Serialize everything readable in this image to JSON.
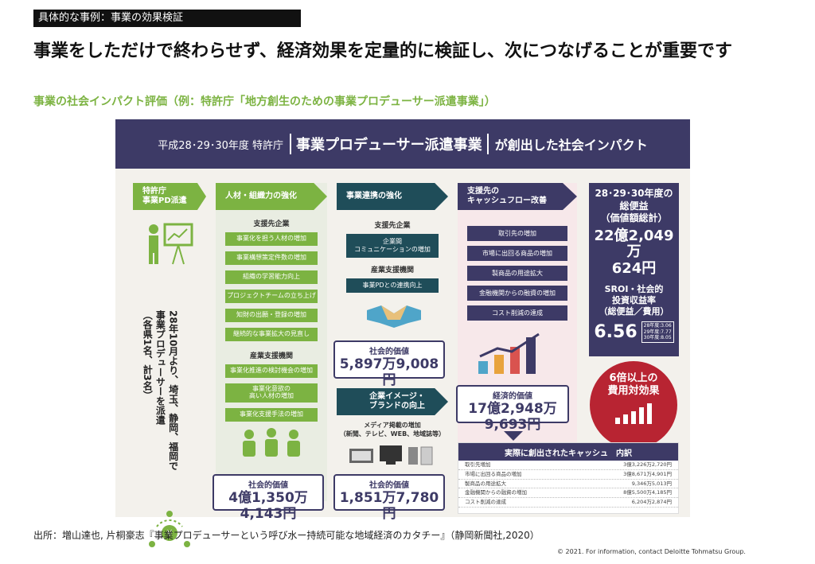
{
  "header": {
    "tag": "具体的な事例：事業の効果検証",
    "headline": "事業をしただけで終わらせず、経済効果を定量的に検証し、次につなげることが重要です",
    "subhead": "事業の社会インパクト評価（例：特許庁「地方創生のための事業プロデューサー派遣事業」）"
  },
  "infographic": {
    "banner_pre": "平成28･29･30年度 特許庁",
    "banner_mid": "事業プロデューサー派遣事業",
    "banner_post": "が創出した社会インパクト",
    "col_pd": {
      "head": "特許庁\n事業PD派遣",
      "text": "28年10月より、埼玉、静岡、福岡で\n事業プロデューサーを派遣\n（各県1名、計3名）",
      "icon": "presenter-icon"
    },
    "col_jinzai": {
      "head": "人材・組織力の強化",
      "group1": "支援先企業",
      "items1": [
        "事業化を担う人材の増加",
        "事業構想策定件数の増加",
        "組織の学習能力向上",
        "プロジェクトチームの立ち上げ",
        "知財の出願・登録の増加",
        "継続的な事業拡大の見直し"
      ],
      "group2": "産業支援機関",
      "items2": [
        "事業化推進の検討機会の増加",
        "事業化意欲の\n高い人材の増加",
        "事業化支援手法の増加"
      ],
      "value_label": "社会的価値",
      "value": "4億1,350万4,143円"
    },
    "col_renkei": {
      "head": "事業連携の強化",
      "group1": "支援先企業",
      "item1": "企業間\nコミュニケーションの増加",
      "group2": "産業支援機関",
      "item2": "事業PDとの連携向上",
      "icon": "handshake-icon",
      "value1_label": "社会的価値",
      "value1": "5,897万9,008円",
      "head2": "企業イメージ・\nブランドの向上",
      "media": "メディア掲載の増加\n（新聞、テレビ、WEB、地域誌等）",
      "value2_label": "社会的価値",
      "value2": "1,851万7,780円"
    },
    "col_cash": {
      "head": "支援先の\nキャッシュフロー改善",
      "items": [
        "取引先の増加",
        "市場に出回る商品の増加",
        "製商品の用途拡大",
        "金融機関からの融資の増加",
        "コスト削減の達成"
      ],
      "value_label": "経済的価値",
      "value": "17億2,948万9,693円"
    },
    "total": {
      "label": "28･29･30年度の\n総便益\n（価値額総計）",
      "value": "22億2,049万\n624円",
      "sroi_label": "SROI・社会的\n投資収益率\n（総便益／費用）",
      "sroi": "6.56",
      "sroi_years": "28年度:3.06\n29年度:7.77\n30年度:8.05"
    },
    "circle": "6倍以上の\n費用対効果",
    "breakdown": {
      "title": "実際に創出されたキャッシュ　内訳",
      "rows": [
        {
          "k": "取引先増加",
          "v": "3億3,226万2,720円"
        },
        {
          "k": "市場に出回る商品の増加",
          "v": "3億8,671万4,901円"
        },
        {
          "k": "製商品の用途拡大",
          "v": "9,346万5,013円"
        },
        {
          "k": "金融機関からの融資の増加",
          "v": "8億5,500万4,185円"
        },
        {
          "k": "コスト削減の達成",
          "v": "6,204万2,874円"
        }
      ]
    }
  },
  "footer": {
    "source": "出所：増山達也, 片桐豪志『事業プロデューサーという呼び水ー持続可能な地域経済のカタチー』（静岡新聞社,2020）",
    "copyright": "© 2021. For information, contact Deloitte Tohmatsu Group."
  },
  "colors": {
    "green": "#7cb342",
    "navy": "#3d3a66",
    "teal": "#1f4d59",
    "red": "#b82432"
  }
}
